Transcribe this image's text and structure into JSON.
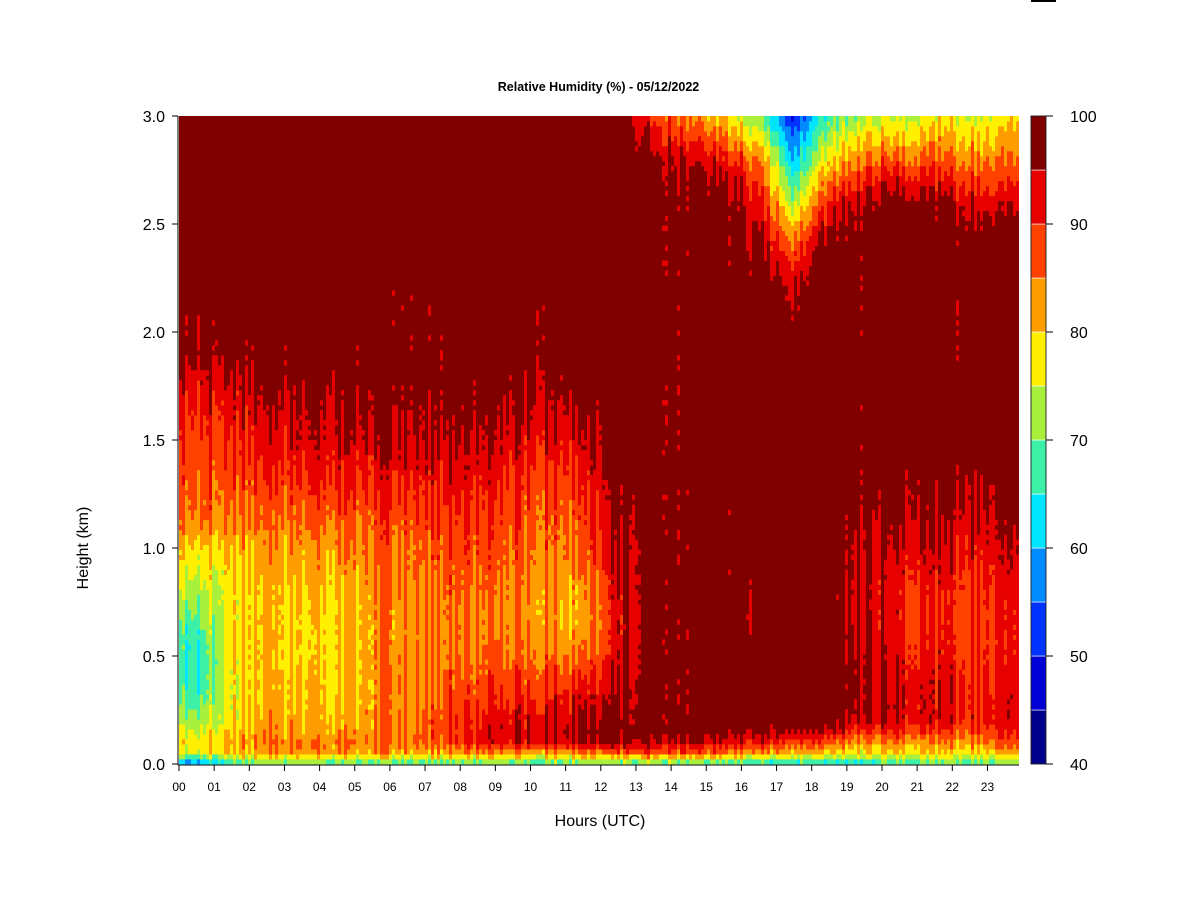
{
  "chart_data": {
    "type": "heatmap",
    "title": "Relative Humidity (%) - 05/12/2022",
    "xlabel": "Hours (UTC)",
    "ylabel": "Height (km)",
    "xlim": [
      0,
      23.9
    ],
    "ylim": [
      0,
      3.0
    ],
    "x_ticks": [
      "00",
      "01",
      "02",
      "03",
      "04",
      "05",
      "06",
      "07",
      "08",
      "09",
      "10",
      "11",
      "12",
      "13",
      "14",
      "15",
      "16",
      "17",
      "18",
      "19",
      "20",
      "21",
      "22",
      "23"
    ],
    "y_ticks": [
      "0.0",
      "0.5",
      "1.0",
      "1.5",
      "2.0",
      "2.5",
      "3.0"
    ],
    "colorbar": {
      "ticks": [
        "40",
        "50",
        "60",
        "70",
        "80",
        "90",
        "100"
      ],
      "levels": [
        40,
        45,
        50,
        55,
        60,
        65,
        70,
        75,
        80,
        85,
        90,
        95,
        100
      ],
      "colors": [
        "#00008b",
        "#0000d6",
        "#0033ff",
        "#008cff",
        "#00e5ff",
        "#3cf0a5",
        "#a8f03c",
        "#ffef00",
        "#ff9d00",
        "#ff4100",
        "#e60000",
        "#800000"
      ]
    },
    "height_levels_km": [
      0.0,
      0.05,
      0.1,
      0.15,
      0.2,
      0.3,
      0.4,
      0.5,
      0.6,
      0.7,
      0.8,
      0.9,
      1.0,
      1.1,
      1.2,
      1.3,
      1.4,
      1.5,
      1.6,
      1.7,
      1.8,
      1.9,
      2.0,
      2.2,
      2.3,
      2.4,
      2.5,
      2.6,
      2.7,
      2.8,
      2.9,
      3.0
    ],
    "hours_utc": [
      0.5,
      1.5,
      2.5,
      3.5,
      4.5,
      5.5,
      6.5,
      7.5,
      8.5,
      9.5,
      10.5,
      11.5,
      12.5,
      13.5,
      14.5,
      15.5,
      16.5,
      17.5,
      18.5,
      19.5,
      20.5,
      21.5,
      22.5,
      23.5
    ],
    "rh_percent_by_hour": [
      [
        56,
        76,
        78,
        75,
        72,
        68,
        66,
        66,
        67,
        70,
        73,
        76,
        80,
        84,
        86,
        87,
        88,
        89,
        90,
        92,
        94,
        97,
        98,
        99,
        99,
        99,
        99,
        99,
        99,
        99,
        99,
        99
      ],
      [
        65,
        80,
        82,
        80,
        78,
        77,
        77,
        78,
        78,
        78,
        78,
        79,
        81,
        84,
        86,
        88,
        89,
        90,
        92,
        93,
        96,
        98,
        99,
        99,
        99,
        99,
        99,
        99,
        99,
        99,
        99,
        99
      ],
      [
        68,
        82,
        84,
        83,
        82,
        80,
        80,
        80,
        80,
        80,
        80,
        81,
        82,
        84,
        86,
        88,
        90,
        92,
        93,
        95,
        97,
        98,
        99,
        99,
        99,
        99,
        99,
        99,
        99,
        99,
        99,
        99
      ],
      [
        68,
        82,
        84,
        82,
        81,
        80,
        79,
        78,
        78,
        78,
        79,
        81,
        82,
        84,
        86,
        89,
        91,
        93,
        94,
        95,
        98,
        99,
        99,
        99,
        99,
        99,
        99,
        99,
        99,
        99,
        99,
        99
      ],
      [
        67,
        82,
        84,
        82,
        81,
        80,
        79,
        79,
        79,
        79,
        80,
        81,
        83,
        85,
        88,
        90,
        92,
        94,
        95,
        96,
        98,
        99,
        99,
        99,
        99,
        99,
        99,
        99,
        99,
        99,
        99,
        99
      ],
      [
        67,
        82,
        85,
        84,
        83,
        83,
        83,
        83,
        83,
        83,
        84,
        85,
        86,
        87,
        89,
        91,
        93,
        95,
        97,
        98,
        99,
        99,
        99,
        99,
        99,
        99,
        99,
        99,
        99,
        99,
        99,
        99
      ],
      [
        68,
        82,
        86,
        86,
        86,
        85,
        85,
        85,
        84,
        84,
        85,
        86,
        87,
        88,
        90,
        92,
        94,
        96,
        97,
        98,
        99,
        99,
        99,
        99,
        99,
        99,
        99,
        99,
        99,
        99,
        99,
        99
      ],
      [
        68,
        82,
        88,
        88,
        88,
        87,
        86,
        86,
        85,
        85,
        86,
        87,
        88,
        89,
        91,
        92,
        94,
        95,
        97,
        98,
        99,
        99,
        99,
        99,
        99,
        99,
        99,
        99,
        99,
        99,
        99,
        99
      ],
      [
        68,
        83,
        92,
        92,
        91,
        89,
        87,
        86,
        85,
        85,
        86,
        87,
        88,
        89,
        90,
        92,
        93,
        95,
        97,
        98,
        99,
        99,
        99,
        99,
        99,
        99,
        99,
        99,
        99,
        99,
        99,
        99
      ],
      [
        68,
        83,
        93,
        94,
        93,
        91,
        88,
        86,
        85,
        84,
        85,
        86,
        87,
        88,
        89,
        90,
        92,
        94,
        96,
        97,
        98,
        99,
        99,
        99,
        99,
        99,
        99,
        99,
        99,
        99,
        99,
        99
      ],
      [
        68,
        82,
        94,
        96,
        94,
        92,
        89,
        86,
        84,
        83,
        84,
        85,
        86,
        87,
        88,
        89,
        91,
        93,
        95,
        97,
        98,
        99,
        99,
        99,
        99,
        99,
        99,
        99,
        99,
        99,
        99,
        99
      ],
      [
        68,
        82,
        95,
        96,
        94,
        92,
        88,
        84,
        81,
        80,
        81,
        83,
        85,
        86,
        87,
        89,
        91,
        93,
        94,
        97,
        98,
        99,
        99,
        99,
        99,
        99,
        99,
        99,
        99,
        99,
        99,
        99
      ],
      [
        68,
        85,
        97,
        98,
        97,
        96,
        94,
        93,
        92,
        92,
        93,
        94,
        95,
        96,
        97,
        98,
        99,
        99,
        99,
        99,
        99,
        99,
        99,
        99,
        99,
        99,
        99,
        99,
        99,
        99,
        99,
        99
      ],
      [
        68,
        88,
        96,
        99,
        99,
        99,
        99,
        99,
        99,
        99,
        99,
        99,
        99,
        99,
        99,
        99,
        99,
        99,
        99,
        99,
        99,
        99,
        99,
        99,
        99,
        99,
        99,
        99,
        99,
        98,
        94,
        90
      ],
      [
        66,
        88,
        95,
        99,
        99,
        99,
        99,
        99,
        99,
        99,
        99,
        99,
        99,
        99,
        99,
        99,
        99,
        99,
        99,
        99,
        99,
        99,
        99,
        99,
        99,
        99,
        99,
        99,
        98,
        95,
        89,
        84
      ],
      [
        66,
        86,
        94,
        99,
        99,
        99,
        99,
        99,
        99,
        99,
        99,
        99,
        99,
        99,
        99,
        99,
        99,
        99,
        99,
        99,
        99,
        99,
        99,
        99,
        99,
        99,
        99,
        99,
        97,
        92,
        86,
        80
      ],
      [
        64,
        82,
        91,
        96,
        99,
        99,
        99,
        99,
        98,
        97,
        98,
        99,
        99,
        99,
        99,
        99,
        99,
        99,
        99,
        99,
        99,
        99,
        99,
        99,
        98,
        96,
        94,
        91,
        88,
        84,
        76,
        70
      ],
      [
        62,
        80,
        88,
        95,
        99,
        99,
        99,
        99,
        99,
        99,
        99,
        99,
        99,
        99,
        99,
        99,
        99,
        99,
        99,
        99,
        99,
        99,
        98,
        94,
        90,
        85,
        79,
        72,
        66,
        60,
        55,
        49
      ],
      [
        62,
        78,
        86,
        93,
        98,
        99,
        99,
        99,
        99,
        99,
        99,
        99,
        99,
        99,
        99,
        99,
        99,
        99,
        99,
        99,
        99,
        99,
        99,
        99,
        99,
        98,
        94,
        90,
        84,
        78,
        72,
        68
      ],
      [
        64,
        78,
        84,
        90,
        96,
        97,
        97,
        96,
        95,
        94,
        94,
        95,
        96,
        97,
        98,
        99,
        99,
        99,
        99,
        99,
        99,
        99,
        99,
        99,
        99,
        99,
        99,
        97,
        92,
        86,
        80,
        74
      ],
      [
        66,
        78,
        84,
        89,
        93,
        94,
        93,
        92,
        91,
        91,
        91,
        92,
        94,
        96,
        97,
        98,
        99,
        99,
        99,
        99,
        99,
        99,
        99,
        99,
        99,
        99,
        99,
        98,
        93,
        86,
        79,
        74
      ],
      [
        67,
        78,
        83,
        88,
        92,
        93,
        92,
        91,
        90,
        90,
        90,
        92,
        93,
        95,
        96,
        98,
        99,
        99,
        99,
        99,
        99,
        99,
        99,
        99,
        99,
        99,
        99,
        97,
        91,
        86,
        81,
        77
      ],
      [
        68,
        79,
        84,
        88,
        91,
        92,
        91,
        90,
        89,
        89,
        90,
        91,
        93,
        94,
        96,
        97,
        99,
        99,
        99,
        99,
        99,
        99,
        99,
        99,
        99,
        99,
        98,
        94,
        90,
        85,
        80,
        76
      ],
      [
        68,
        80,
        86,
        89,
        92,
        92,
        91,
        90,
        90,
        90,
        91,
        92,
        93,
        95,
        96,
        97,
        98,
        99,
        99,
        99,
        99,
        99,
        99,
        99,
        99,
        99,
        96,
        92,
        88,
        84,
        80,
        77
      ]
    ]
  }
}
